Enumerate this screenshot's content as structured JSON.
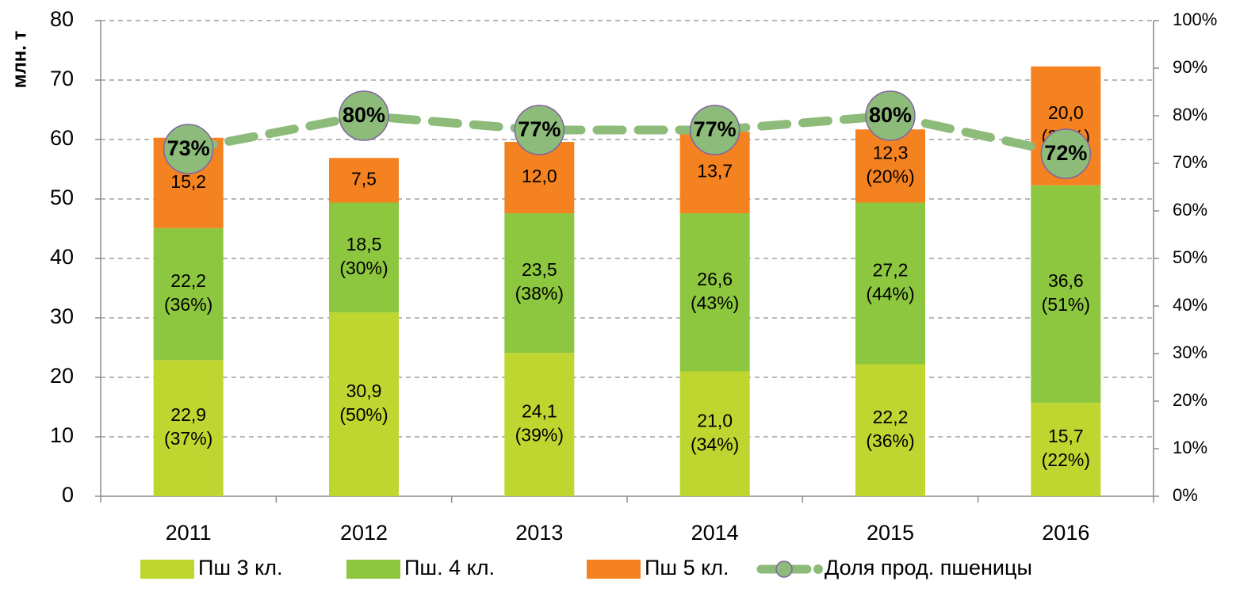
{
  "chart_data": {
    "type": "bar",
    "categories": [
      "2011",
      "2012",
      "2013",
      "2014",
      "2015",
      "2016"
    ],
    "ylabel": "млн. т",
    "ylim": [
      0,
      80
    ],
    "yticks": [
      0,
      10,
      20,
      30,
      40,
      50,
      60,
      70,
      80
    ],
    "y2lim": [
      0,
      100
    ],
    "y2ticks": [
      {
        "value": 0,
        "label": "0%"
      },
      {
        "value": 10,
        "label": "10%"
      },
      {
        "value": 20,
        "label": "20%"
      },
      {
        "value": 30,
        "label": "30%"
      },
      {
        "value": 40,
        "label": "40%"
      },
      {
        "value": 50,
        "label": "50%"
      },
      {
        "value": 60,
        "label": "60%"
      },
      {
        "value": 70,
        "label": "70%"
      },
      {
        "value": 80,
        "label": "80%"
      },
      {
        "value": 90,
        "label": "90%"
      },
      {
        "value": 100,
        "label": "100%"
      }
    ],
    "grid": true,
    "stacked": true,
    "legend": "bottom",
    "series": [
      {
        "name": "Пш 3 кл.",
        "color": "#bed62f",
        "values": [
          22.9,
          30.9,
          24.1,
          21.0,
          22.2,
          15.7
        ],
        "value_labels": [
          "22,9",
          "30,9",
          "24,1",
          "21,0",
          "22,2",
          "15,7"
        ],
        "share_labels": [
          "(37%)",
          "(50%)",
          "(39%)",
          "(34%)",
          "(36%)",
          "(22%)"
        ]
      },
      {
        "name": "Пш. 4 кл.",
        "color": "#8dc63f",
        "values": [
          22.2,
          18.5,
          23.5,
          26.6,
          27.2,
          36.6
        ],
        "value_labels": [
          "22,2",
          "18,5",
          "23,5",
          "26,6",
          "27,2",
          "36,6"
        ],
        "share_labels": [
          "(36%)",
          "(30%)",
          "(38%)",
          "(43%)",
          "(44%)",
          "(51%)"
        ]
      },
      {
        "name": "Пш 5 кл.",
        "color": "#f58220",
        "values": [
          15.2,
          7.5,
          12.0,
          13.7,
          12.3,
          20.0
        ],
        "value_labels": [
          "15,2",
          "7,5",
          "12,0",
          "13,7",
          "12,3",
          "20,0"
        ],
        "share_labels": [
          null,
          null,
          null,
          null,
          "(20%)",
          "(27%)"
        ]
      },
      {
        "name": "Доля прод. пшеницы",
        "type": "line",
        "axis": "y2",
        "color": "#8dbb7a",
        "marker_edge": "#8064a2",
        "values": [
          73,
          80,
          77,
          77,
          80,
          72
        ],
        "value_labels": [
          "73%",
          "80%",
          "77%",
          "77%",
          "80%",
          "72%"
        ]
      }
    ]
  }
}
